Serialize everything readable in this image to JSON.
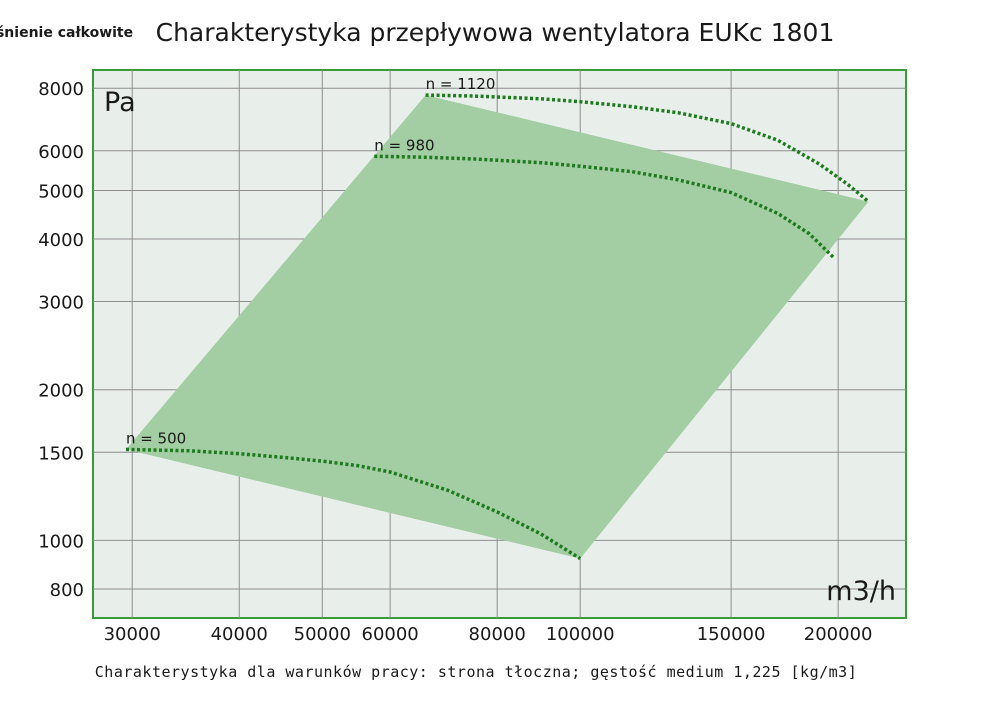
{
  "chart_data": {
    "type": "line",
    "title": "Charakterystyka przepływowa wentylatora EUKc 1801",
    "ylabel": "ciśnienie całkowite",
    "y_unit": "Pa",
    "x_unit": "m3/h",
    "xlabel": "",
    "footnote": "Charakterystyka dla warunków pracy: strona tłoczna; gęstość medium 1,225 [kg/m3]",
    "xscale": "log",
    "yscale": "log",
    "xlim": [
      27000,
      240000
    ],
    "ylim": [
      700,
      8700
    ],
    "x_ticks": [
      30000,
      40000,
      50000,
      60000,
      80000,
      100000,
      150000,
      200000
    ],
    "x_tick_labels": [
      "30000",
      "40000",
      "50000",
      "60000",
      "80000",
      "100000",
      "150000",
      "200000"
    ],
    "y_ticks": [
      800,
      1000,
      1500,
      2000,
      3000,
      4000,
      5000,
      6000,
      8000
    ],
    "y_tick_labels": [
      "800",
      "1000",
      "1500",
      "2000",
      "3000",
      "4000",
      "5000",
      "6000",
      "8000"
    ],
    "grid": true,
    "colors": {
      "plot_bg": "#e8efea",
      "frame": "#3a9a3a",
      "grid": "#8e8e8e",
      "area_fill": "#a3cda3",
      "curve": "#1e7a1e"
    },
    "series": [
      {
        "name": "n = 500",
        "x": [
          29500,
          35000,
          40000,
          45000,
          50000,
          55000,
          60000,
          70000,
          80000,
          90000,
          100000
        ],
        "y": [
          1520,
          1510,
          1490,
          1465,
          1440,
          1410,
          1370,
          1260,
          1140,
          1030,
          920
        ]
      },
      {
        "name": "n = 980",
        "x": [
          57500,
          65000,
          75000,
          90000,
          100000,
          115000,
          130000,
          150000,
          170000,
          185000,
          198000
        ],
        "y": [
          5850,
          5830,
          5780,
          5680,
          5590,
          5450,
          5250,
          4950,
          4500,
          4100,
          3660
        ]
      },
      {
        "name": "n = 1120",
        "x": [
          66000,
          75000,
          90000,
          100000,
          115000,
          130000,
          150000,
          170000,
          190000,
          205000,
          217000
        ],
        "y": [
          7750,
          7720,
          7620,
          7520,
          7350,
          7150,
          6800,
          6300,
          5650,
          5150,
          4750
        ]
      }
    ],
    "envelope": {
      "x": [
        29500,
        66000,
        217000,
        100000
      ],
      "y": [
        1520,
        7750,
        4750,
        920
      ]
    }
  }
}
